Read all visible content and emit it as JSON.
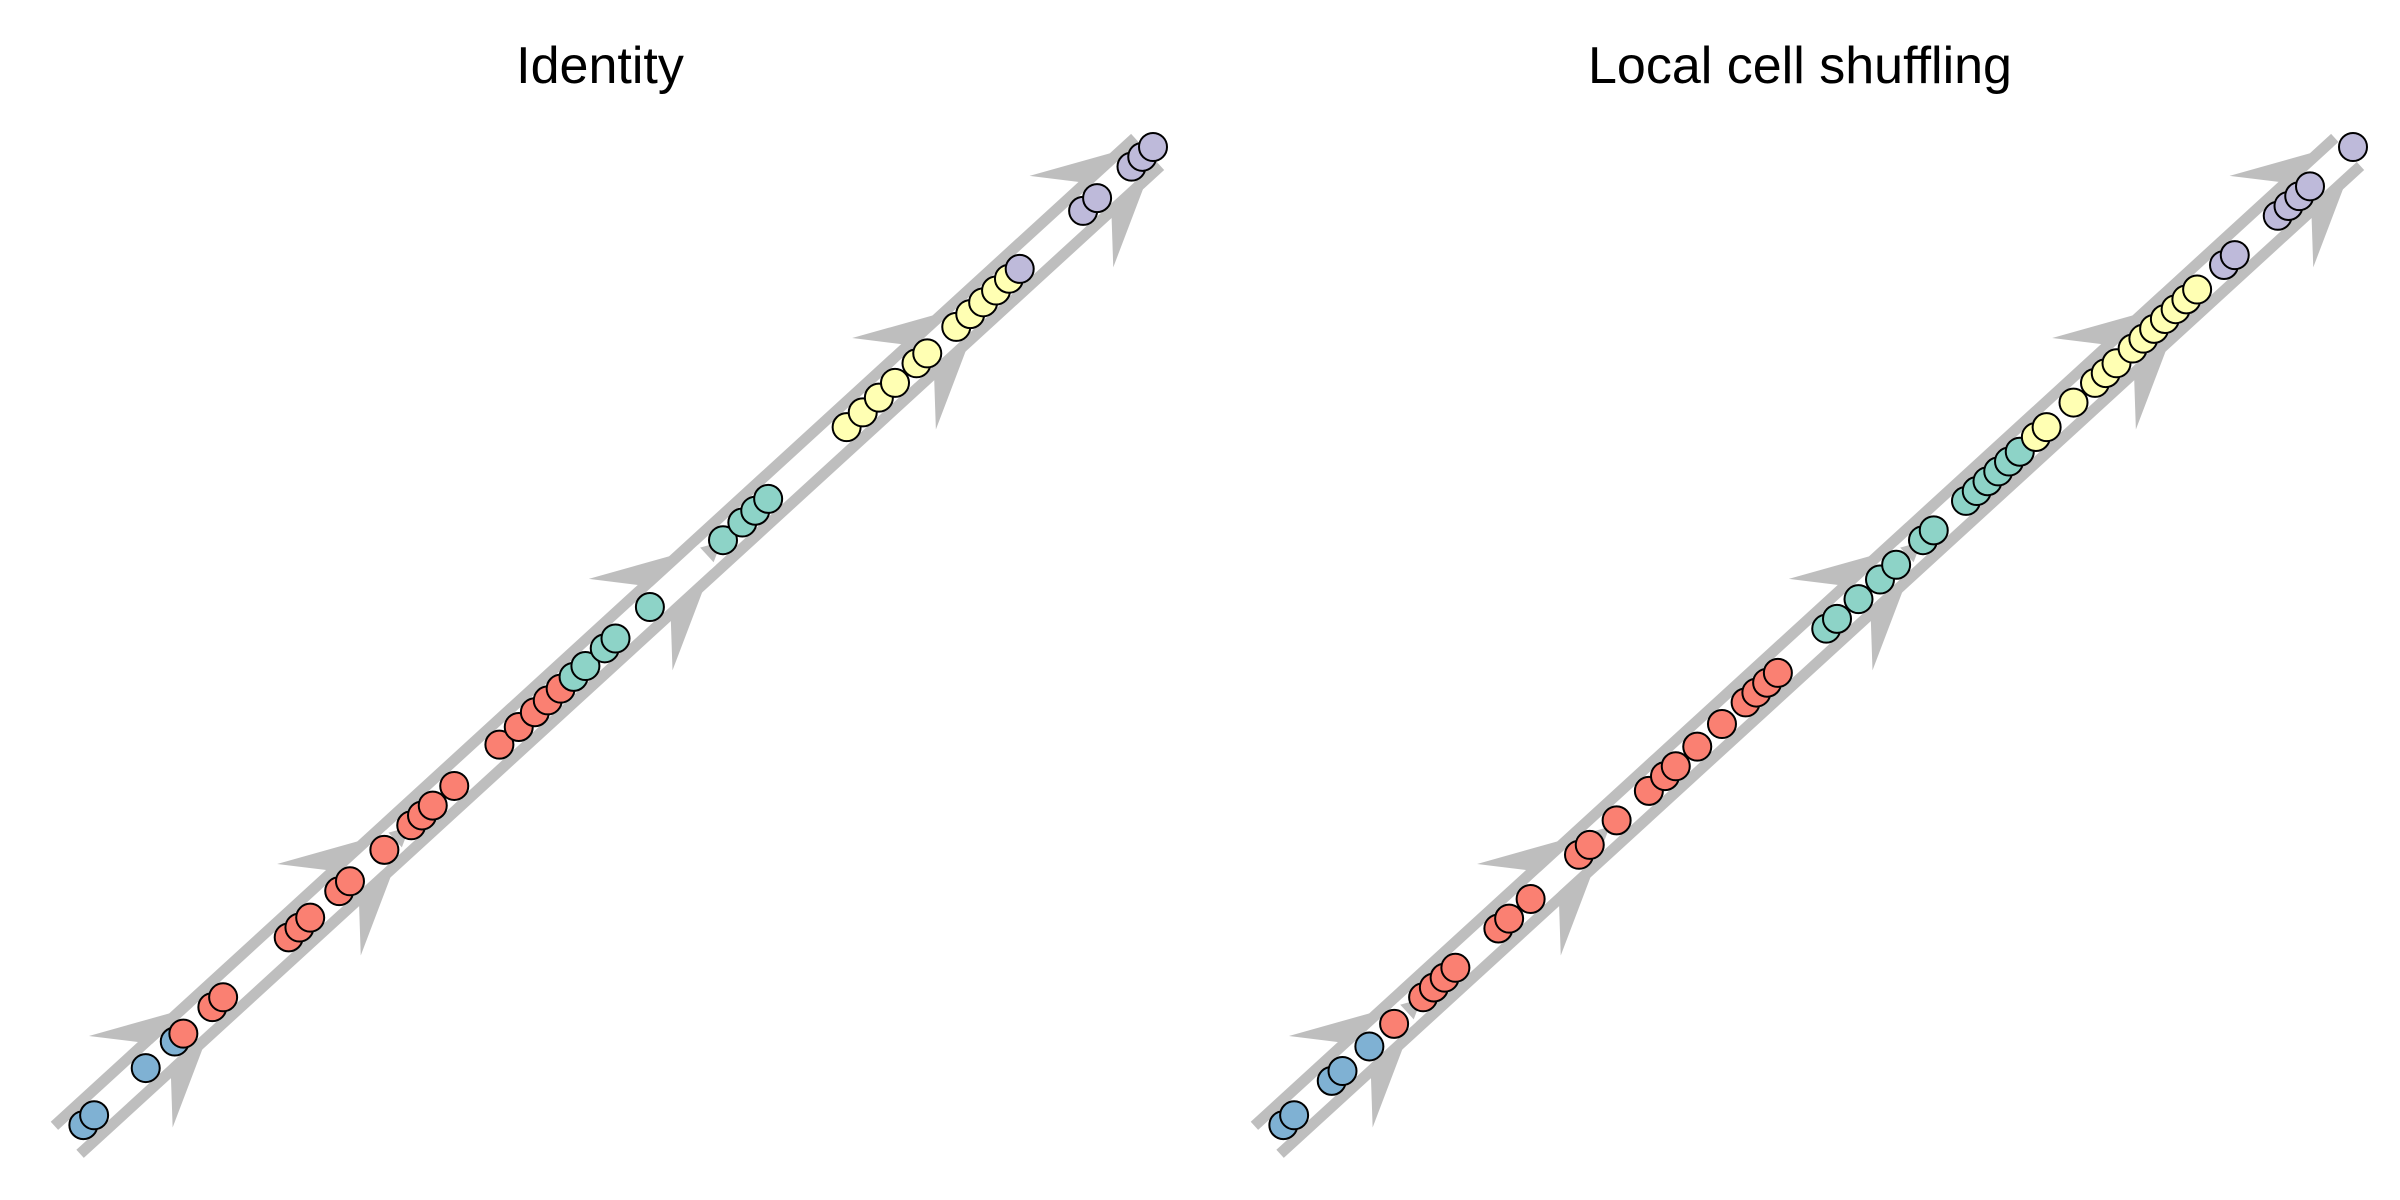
{
  "colors": {
    "blue": "#7fb1d3",
    "red": "#fa8072",
    "teal": "#8dd3c7",
    "yellow": "#ffffb3",
    "purple": "#bebada",
    "trajectory": "#bebebe",
    "outline": "#000000"
  },
  "panels": [
    {
      "title": "Identity",
      "cells": [
        {
          "t": 0.005,
          "c": "blue"
        },
        {
          "t": 0.015,
          "c": "blue"
        },
        {
          "t": 0.063,
          "c": "blue"
        },
        {
          "t": 0.09,
          "c": "blue"
        },
        {
          "t": 0.098,
          "c": "red"
        },
        {
          "t": 0.125,
          "c": "red"
        },
        {
          "t": 0.135,
          "c": "red"
        },
        {
          "t": 0.196,
          "c": "red"
        },
        {
          "t": 0.206,
          "c": "red"
        },
        {
          "t": 0.216,
          "c": "red"
        },
        {
          "t": 0.243,
          "c": "red"
        },
        {
          "t": 0.253,
          "c": "red"
        },
        {
          "t": 0.285,
          "c": "red"
        },
        {
          "t": 0.31,
          "c": "red"
        },
        {
          "t": 0.32,
          "c": "red"
        },
        {
          "t": 0.33,
          "c": "red"
        },
        {
          "t": 0.35,
          "c": "red"
        },
        {
          "t": 0.392,
          "c": "red"
        },
        {
          "t": 0.41,
          "c": "red"
        },
        {
          "t": 0.425,
          "c": "red"
        },
        {
          "t": 0.437,
          "c": "red"
        },
        {
          "t": 0.449,
          "c": "red"
        },
        {
          "t": 0.461,
          "c": "teal"
        },
        {
          "t": 0.472,
          "c": "teal"
        },
        {
          "t": 0.49,
          "c": "teal"
        },
        {
          "t": 0.5,
          "c": "teal"
        },
        {
          "t": 0.532,
          "c": "teal"
        },
        {
          "t": 0.6,
          "c": "teal"
        },
        {
          "t": 0.618,
          "c": "teal"
        },
        {
          "t": 0.63,
          "c": "teal"
        },
        {
          "t": 0.642,
          "c": "teal"
        },
        {
          "t": 0.715,
          "c": "yellow"
        },
        {
          "t": 0.73,
          "c": "yellow"
        },
        {
          "t": 0.745,
          "c": "yellow"
        },
        {
          "t": 0.76,
          "c": "yellow"
        },
        {
          "t": 0.78,
          "c": "yellow"
        },
        {
          "t": 0.79,
          "c": "yellow"
        },
        {
          "t": 0.817,
          "c": "yellow"
        },
        {
          "t": 0.83,
          "c": "yellow"
        },
        {
          "t": 0.842,
          "c": "yellow"
        },
        {
          "t": 0.854,
          "c": "yellow"
        },
        {
          "t": 0.866,
          "c": "yellow"
        },
        {
          "t": 0.876,
          "c": "purple"
        },
        {
          "t": 0.935,
          "c": "purple"
        },
        {
          "t": 0.948,
          "c": "purple"
        },
        {
          "t": 0.98,
          "c": "purple"
        },
        {
          "t": 0.99,
          "c": "purple"
        },
        {
          "t": 1.0,
          "c": "purple"
        }
      ]
    },
    {
      "title": "Local cell shuffling",
      "cells": [
        {
          "t": 0.005,
          "c": "blue"
        },
        {
          "t": 0.015,
          "c": "blue"
        },
        {
          "t": 0.05,
          "c": "blue"
        },
        {
          "t": 0.06,
          "c": "blue"
        },
        {
          "t": 0.085,
          "c": "blue"
        },
        {
          "t": 0.108,
          "c": "red"
        },
        {
          "t": 0.135,
          "c": "red"
        },
        {
          "t": 0.145,
          "c": "red"
        },
        {
          "t": 0.155,
          "c": "red"
        },
        {
          "t": 0.165,
          "c": "red"
        },
        {
          "t": 0.205,
          "c": "red"
        },
        {
          "t": 0.215,
          "c": "red"
        },
        {
          "t": 0.235,
          "c": "red"
        },
        {
          "t": 0.28,
          "c": "red"
        },
        {
          "t": 0.29,
          "c": "red"
        },
        {
          "t": 0.315,
          "c": "red"
        },
        {
          "t": 0.345,
          "c": "red"
        },
        {
          "t": 0.36,
          "c": "red"
        },
        {
          "t": 0.37,
          "c": "red"
        },
        {
          "t": 0.39,
          "c": "red"
        },
        {
          "t": 0.413,
          "c": "red"
        },
        {
          "t": 0.435,
          "c": "red"
        },
        {
          "t": 0.445,
          "c": "red"
        },
        {
          "t": 0.455,
          "c": "red"
        },
        {
          "t": 0.465,
          "c": "red"
        },
        {
          "t": 0.51,
          "c": "teal"
        },
        {
          "t": 0.52,
          "c": "teal"
        },
        {
          "t": 0.54,
          "c": "teal"
        },
        {
          "t": 0.56,
          "c": "teal"
        },
        {
          "t": 0.575,
          "c": "teal"
        },
        {
          "t": 0.6,
          "c": "teal"
        },
        {
          "t": 0.61,
          "c": "teal"
        },
        {
          "t": 0.64,
          "c": "teal"
        },
        {
          "t": 0.65,
          "c": "teal"
        },
        {
          "t": 0.66,
          "c": "teal"
        },
        {
          "t": 0.67,
          "c": "teal"
        },
        {
          "t": 0.68,
          "c": "teal"
        },
        {
          "t": 0.69,
          "c": "teal"
        },
        {
          "t": 0.705,
          "c": "yellow"
        },
        {
          "t": 0.715,
          "c": "yellow"
        },
        {
          "t": 0.74,
          "c": "yellow"
        },
        {
          "t": 0.76,
          "c": "yellow"
        },
        {
          "t": 0.77,
          "c": "yellow"
        },
        {
          "t": 0.78,
          "c": "yellow"
        },
        {
          "t": 0.795,
          "c": "yellow"
        },
        {
          "t": 0.805,
          "c": "yellow"
        },
        {
          "t": 0.815,
          "c": "yellow"
        },
        {
          "t": 0.825,
          "c": "yellow"
        },
        {
          "t": 0.835,
          "c": "yellow"
        },
        {
          "t": 0.845,
          "c": "yellow"
        },
        {
          "t": 0.855,
          "c": "yellow"
        },
        {
          "t": 0.88,
          "c": "purple"
        },
        {
          "t": 0.89,
          "c": "purple"
        },
        {
          "t": 0.93,
          "c": "purple"
        },
        {
          "t": 0.94,
          "c": "purple"
        },
        {
          "t": 0.95,
          "c": "purple"
        },
        {
          "t": 0.96,
          "c": "purple"
        },
        {
          "t": 1.0,
          "c": "purple"
        }
      ]
    }
  ]
}
